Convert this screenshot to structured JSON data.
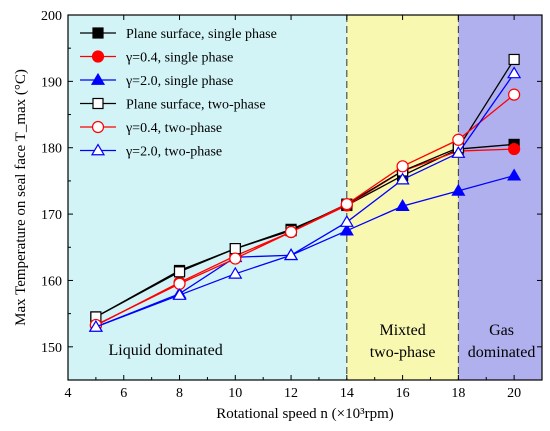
{
  "chart_data": {
    "type": "line",
    "xlabel": "Rotational speed n (×10³rpm)",
    "ylabel": "Max Temperature on seal face T_max (°C)",
    "xlim": [
      4,
      21
    ],
    "ylim": [
      145,
      200
    ],
    "xticks": [
      4,
      6,
      8,
      10,
      12,
      14,
      16,
      18,
      20
    ],
    "yticks": [
      150,
      160,
      170,
      180,
      190,
      200
    ],
    "grid": false,
    "legend_position": "top-left",
    "regions": [
      {
        "label": "Liquid dominated",
        "x_start": 4,
        "x_end": 14,
        "color": "#d2f4f7"
      },
      {
        "label": "Mixted two-phase",
        "x_start": 14,
        "x_end": 18,
        "color": "#f8f8b0"
      },
      {
        "label": "Gas dominated",
        "x_start": 18,
        "x_end": 21,
        "color": "#b0b0ee"
      }
    ],
    "boundaries": [
      14,
      18
    ],
    "series": [
      {
        "name": "Plane surface, single phase",
        "color": "#000000",
        "marker": "square",
        "filled": true,
        "x": [
          5,
          8,
          10,
          12,
          14,
          16,
          18,
          20
        ],
        "y": [
          154.5,
          161.5,
          164.8,
          167.7,
          171.3,
          175.8,
          179.8,
          180.5
        ]
      },
      {
        "name": "γ=0.4, single phase",
        "color": "#ff0000",
        "marker": "circle",
        "filled": true,
        "x": [
          5,
          8,
          10,
          12,
          14,
          16,
          18,
          20
        ],
        "y": [
          153.2,
          159.7,
          163.7,
          167.3,
          171.3,
          176.5,
          179.5,
          179.8
        ]
      },
      {
        "name": "γ=2.0, single phase",
        "color": "#0000ff",
        "marker": "triangle",
        "filled": true,
        "x": [
          5,
          8,
          10,
          12,
          14,
          16,
          18,
          20
        ],
        "y": [
          153.0,
          158.0,
          163.5,
          163.8,
          167.5,
          171.2,
          173.5,
          175.8
        ]
      },
      {
        "name": "Plane surface, two-phase",
        "color": "#000000",
        "marker": "square",
        "filled": false,
        "x": [
          5,
          8,
          10,
          12,
          14,
          16,
          18,
          20
        ],
        "y": [
          154.5,
          161.3,
          164.8,
          167.5,
          171.5,
          176.5,
          180.0,
          193.3
        ]
      },
      {
        "name": "γ=0.4, two-phase",
        "color": "#ff0000",
        "marker": "circle",
        "filled": false,
        "x": [
          5,
          8,
          10,
          12,
          14,
          16,
          18,
          20
        ],
        "y": [
          153.3,
          159.5,
          163.3,
          167.3,
          171.5,
          177.2,
          181.2,
          188.0
        ]
      },
      {
        "name": "γ=2.0, two-phase",
        "color": "#0000ff",
        "marker": "triangle",
        "filled": false,
        "x": [
          5,
          8,
          10,
          12,
          14,
          16,
          18,
          20
        ],
        "y": [
          153.0,
          157.8,
          161.0,
          163.8,
          168.8,
          175.2,
          179.2,
          191.2
        ]
      }
    ]
  }
}
